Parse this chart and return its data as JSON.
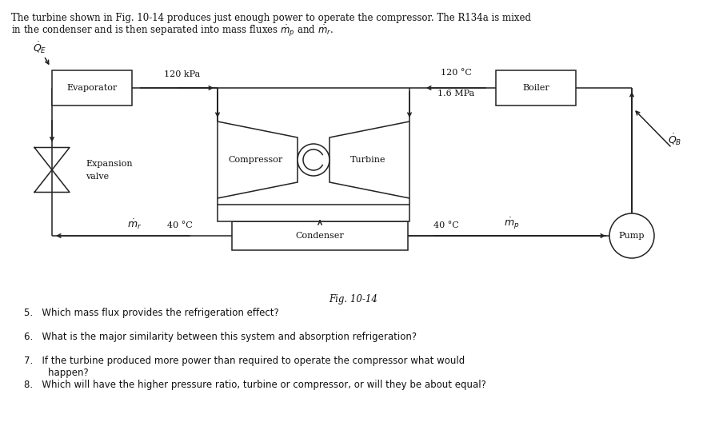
{
  "bg_color": "#ffffff",
  "line_color": "#222222",
  "text_color": "#111111",
  "fig_caption": "Fig. 10-14",
  "header_line1": "The turbine shown in Fig. 10-14 produces just enough power to operate the compressor. The R134a is mixed",
  "header_line2": "in the condenser and is then separated into mass fluxes $\\dot{m}_p$ and $\\dot{m}_r$.",
  "label_120kpa": "120 kPa",
  "label_120c": "120 °C",
  "label_16mpa": "1.6 MPa",
  "label_40c_left": "40 °C",
  "label_40c_right": "40 °C",
  "label_evaporator": "Evaporator",
  "label_boiler": "Boiler",
  "label_compressor": "Compressor",
  "label_turbine": "Turbine",
  "label_condenser": "Condenser",
  "label_pump": "Pump",
  "label_expansion": "Expansion",
  "label_valve": "valve",
  "questions": [
    "5.   Which mass flux provides the refrigeration effect?",
    "6.   What is the major similarity between this system and absorption refrigeration?",
    "7.   If the turbine produced more power than required to operate the compressor what would\n        happen?",
    "8.   Which will have the higher pressure ratio, turbine or compressor, or will they be about equal?"
  ]
}
